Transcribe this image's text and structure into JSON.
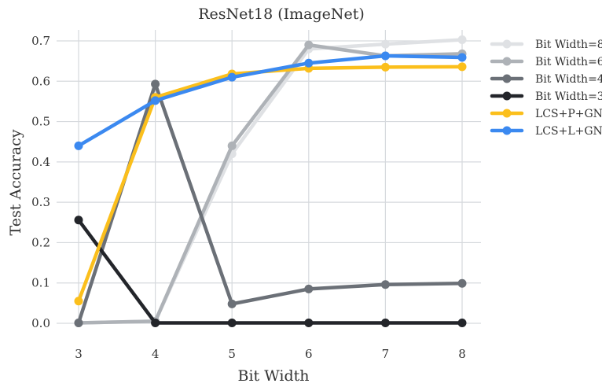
{
  "chart_data": {
    "type": "line",
    "title": "ResNet18 (ImageNet)",
    "xlabel": "Bit Width",
    "ylabel": "Test Accuracy",
    "x": [
      3,
      4,
      5,
      6,
      7,
      8
    ],
    "xlim": [
      3,
      8
    ],
    "ylim": [
      0.0,
      0.7
    ],
    "yticks": [
      "0.0",
      "0.1",
      "0.2",
      "0.3",
      "0.4",
      "0.5",
      "0.6",
      "0.7"
    ],
    "xticks": [
      "3",
      "4",
      "5",
      "6",
      "7",
      "8"
    ],
    "grid": true,
    "legend_position": "right",
    "series": [
      {
        "name": "Bit Width=8",
        "color": "#dfe1e4",
        "values": [
          0.001,
          0.005,
          0.42,
          0.68,
          0.692,
          0.703
        ]
      },
      {
        "name": "Bit Width=6",
        "color": "#aeb2b7",
        "values": [
          0.001,
          0.005,
          0.44,
          0.69,
          0.663,
          0.668
        ]
      },
      {
        "name": "Bit Width=4",
        "color": "#6b7077",
        "values": [
          0.001,
          0.593,
          0.048,
          0.085,
          0.096,
          0.099
        ]
      },
      {
        "name": "Bit Width=3",
        "color": "#23252a",
        "values": [
          0.256,
          0.001,
          0.001,
          0.001,
          0.001,
          0.001
        ]
      },
      {
        "name": "LCS+P+GN",
        "color": "#fbbf1c",
        "values": [
          0.055,
          0.56,
          0.618,
          0.632,
          0.635,
          0.636
        ]
      },
      {
        "name": "LCS+L+GN",
        "color": "#3b89f0",
        "values": [
          0.44,
          0.552,
          0.61,
          0.645,
          0.663,
          0.659
        ]
      }
    ]
  }
}
